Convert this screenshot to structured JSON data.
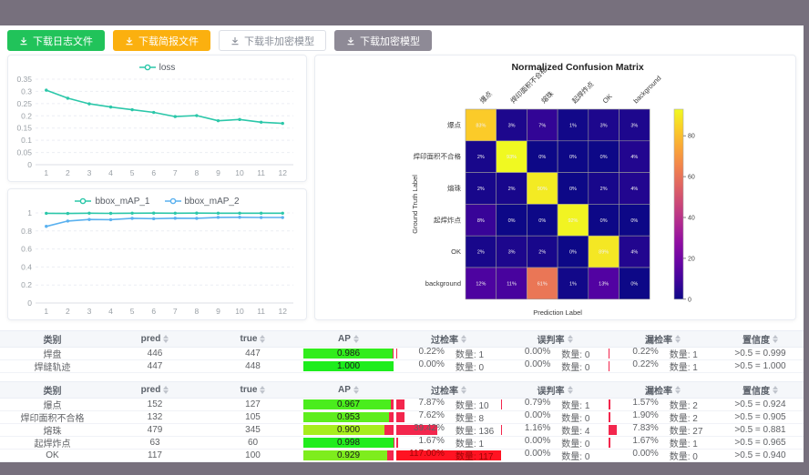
{
  "toolbar": {
    "buttons": [
      {
        "label": "下载日志文件",
        "variant": "green"
      },
      {
        "label": "下载简报文件",
        "variant": "orange"
      },
      {
        "label": "下载非加密模型",
        "variant": "plain"
      },
      {
        "label": "下载加密模型",
        "variant": "gray"
      }
    ]
  },
  "colors": {
    "teal": "#2bc7a9",
    "blue": "#5ab1ef",
    "bar_red": "#f3264d",
    "bar_red_bright": "#ff1322",
    "surround": "#77707d"
  },
  "chart_data": [
    {
      "type": "line",
      "title": "",
      "x": [
        1,
        2,
        3,
        4,
        5,
        6,
        7,
        8,
        9,
        10,
        11,
        12
      ],
      "series": [
        {
          "name": "loss",
          "color": "#2bc7a9",
          "values": [
            0.305,
            0.272,
            0.249,
            0.236,
            0.225,
            0.214,
            0.197,
            0.201,
            0.18,
            0.185,
            0.174,
            0.169
          ]
        }
      ],
      "ylim": [
        0,
        0.35
      ],
      "yticks": [
        0,
        0.05,
        0.1,
        0.15,
        0.2,
        0.25,
        0.3,
        0.35
      ],
      "legend_position": "top",
      "grid": true
    },
    {
      "type": "line",
      "title": "",
      "x": [
        1,
        2,
        3,
        4,
        5,
        6,
        7,
        8,
        9,
        10,
        11,
        12
      ],
      "series": [
        {
          "name": "bbox_mAP_1",
          "color": "#2bc7a9",
          "values": [
            0.996,
            0.994,
            0.997,
            0.995,
            0.997,
            0.998,
            0.997,
            0.998,
            0.997,
            0.997,
            0.997,
            0.997
          ]
        },
        {
          "name": "bbox_mAP_2",
          "color": "#5ab1ef",
          "values": [
            0.851,
            0.91,
            0.927,
            0.925,
            0.94,
            0.936,
            0.941,
            0.94,
            0.951,
            0.952,
            0.949,
            0.949
          ]
        }
      ],
      "ylim": [
        0,
        1
      ],
      "yticks": [
        0,
        0.2,
        0.4,
        0.6,
        0.8,
        1
      ],
      "legend_position": "top",
      "grid": true
    },
    {
      "type": "heatmap",
      "title": "Normalized Confusion Matrix",
      "xlabel": "Prediction Label",
      "ylabel": "Ground Truth Label",
      "labels": [
        "爆点",
        "焊印面积不合格",
        "熔珠",
        "起焊炸点",
        "OK",
        "background"
      ],
      "matrix_percent": [
        [
          83,
          3,
          7,
          1,
          3,
          3
        ],
        [
          2,
          93,
          0,
          0,
          0,
          4
        ],
        [
          2,
          2,
          90,
          0,
          2,
          4
        ],
        [
          8,
          0,
          0,
          92,
          0,
          0
        ],
        [
          2,
          3,
          2,
          0,
          89,
          4
        ],
        [
          12,
          11,
          61,
          1,
          13,
          0
        ]
      ],
      "colormap": "plasma",
      "vmax": 93,
      "colorbar_ticks": [
        0,
        20,
        40,
        60,
        80
      ]
    }
  ],
  "tables": [
    {
      "headers": [
        "类别",
        "pred",
        "true",
        "AP",
        "过检率",
        "误判率",
        "漏检率",
        "置信度"
      ],
      "rows": [
        {
          "name": "焊盘",
          "pred": "446",
          "true": "447",
          "ap": 0.986,
          "ap_text": "0.986",
          "over": {
            "pct": "0.22%",
            "count": "数量: 1",
            "v": 0.22
          },
          "mis": {
            "pct": "0.00%",
            "count": "数量: 0",
            "v": 0
          },
          "miss": {
            "pct": "0.22%",
            "count": "数量: 1",
            "v": 0.22
          },
          "conf": ">0.5 = 0.999"
        },
        {
          "name": "焊缝轨迹",
          "pred": "447",
          "true": "448",
          "ap": 1.0,
          "ap_text": "1.000",
          "over": {
            "pct": "0.00%",
            "count": "数量: 0",
            "v": 0
          },
          "mis": {
            "pct": "0.00%",
            "count": "数量: 0",
            "v": 0
          },
          "miss": {
            "pct": "0.22%",
            "count": "数量: 1",
            "v": 0.22
          },
          "conf": ">0.5 = 1.000"
        }
      ]
    },
    {
      "headers": [
        "类别",
        "pred",
        "true",
        "AP",
        "过检率",
        "误判率",
        "漏检率",
        "置信度"
      ],
      "rows": [
        {
          "name": "爆点",
          "pred": "152",
          "true": "127",
          "ap": 0.967,
          "ap_text": "0.967",
          "over": {
            "pct": "7.87%",
            "count": "数量: 10",
            "v": 7.87
          },
          "mis": {
            "pct": "0.79%",
            "count": "数量: 1",
            "v": 0.79
          },
          "miss": {
            "pct": "1.57%",
            "count": "数量: 2",
            "v": 1.57
          },
          "conf": ">0.5 = 0.924"
        },
        {
          "name": "焊印面积不合格",
          "pred": "132",
          "true": "105",
          "ap": 0.953,
          "ap_text": "0.953",
          "over": {
            "pct": "7.62%",
            "count": "数量: 8",
            "v": 7.62
          },
          "mis": {
            "pct": "0.00%",
            "count": "数量: 0",
            "v": 0
          },
          "miss": {
            "pct": "1.90%",
            "count": "数量: 2",
            "v": 1.9
          },
          "conf": ">0.5 = 0.905"
        },
        {
          "name": "熔珠",
          "pred": "479",
          "true": "345",
          "ap": 0.9,
          "ap_text": "0.900",
          "over": {
            "pct": "39.42%",
            "count": "数量: 136",
            "v": 39.42
          },
          "mis": {
            "pct": "1.16%",
            "count": "数量: 4",
            "v": 1.16
          },
          "miss": {
            "pct": "7.83%",
            "count": "数量: 27",
            "v": 7.83
          },
          "conf": ">0.5 = 0.881"
        },
        {
          "name": "起焊炸点",
          "pred": "63",
          "true": "60",
          "ap": 0.998,
          "ap_text": "0.998",
          "over": {
            "pct": "1.67%",
            "count": "数量: 1",
            "v": 1.67
          },
          "mis": {
            "pct": "0.00%",
            "count": "数量: 0",
            "v": 0
          },
          "miss": {
            "pct": "1.67%",
            "count": "数量: 1",
            "v": 1.67
          },
          "conf": ">0.5 = 0.965"
        },
        {
          "name": "OK",
          "pred": "117",
          "true": "100",
          "ap": 0.929,
          "ap_text": "0.929",
          "over": {
            "pct": "117.00%",
            "count": "数量: 117",
            "v": 117
          },
          "mis": {
            "pct": "0.00%",
            "count": "数量: 0",
            "v": 0
          },
          "miss": {
            "pct": "0.00%",
            "count": "数量: 0",
            "v": 0
          },
          "conf": ">0.5 = 0.940"
        }
      ]
    }
  ]
}
